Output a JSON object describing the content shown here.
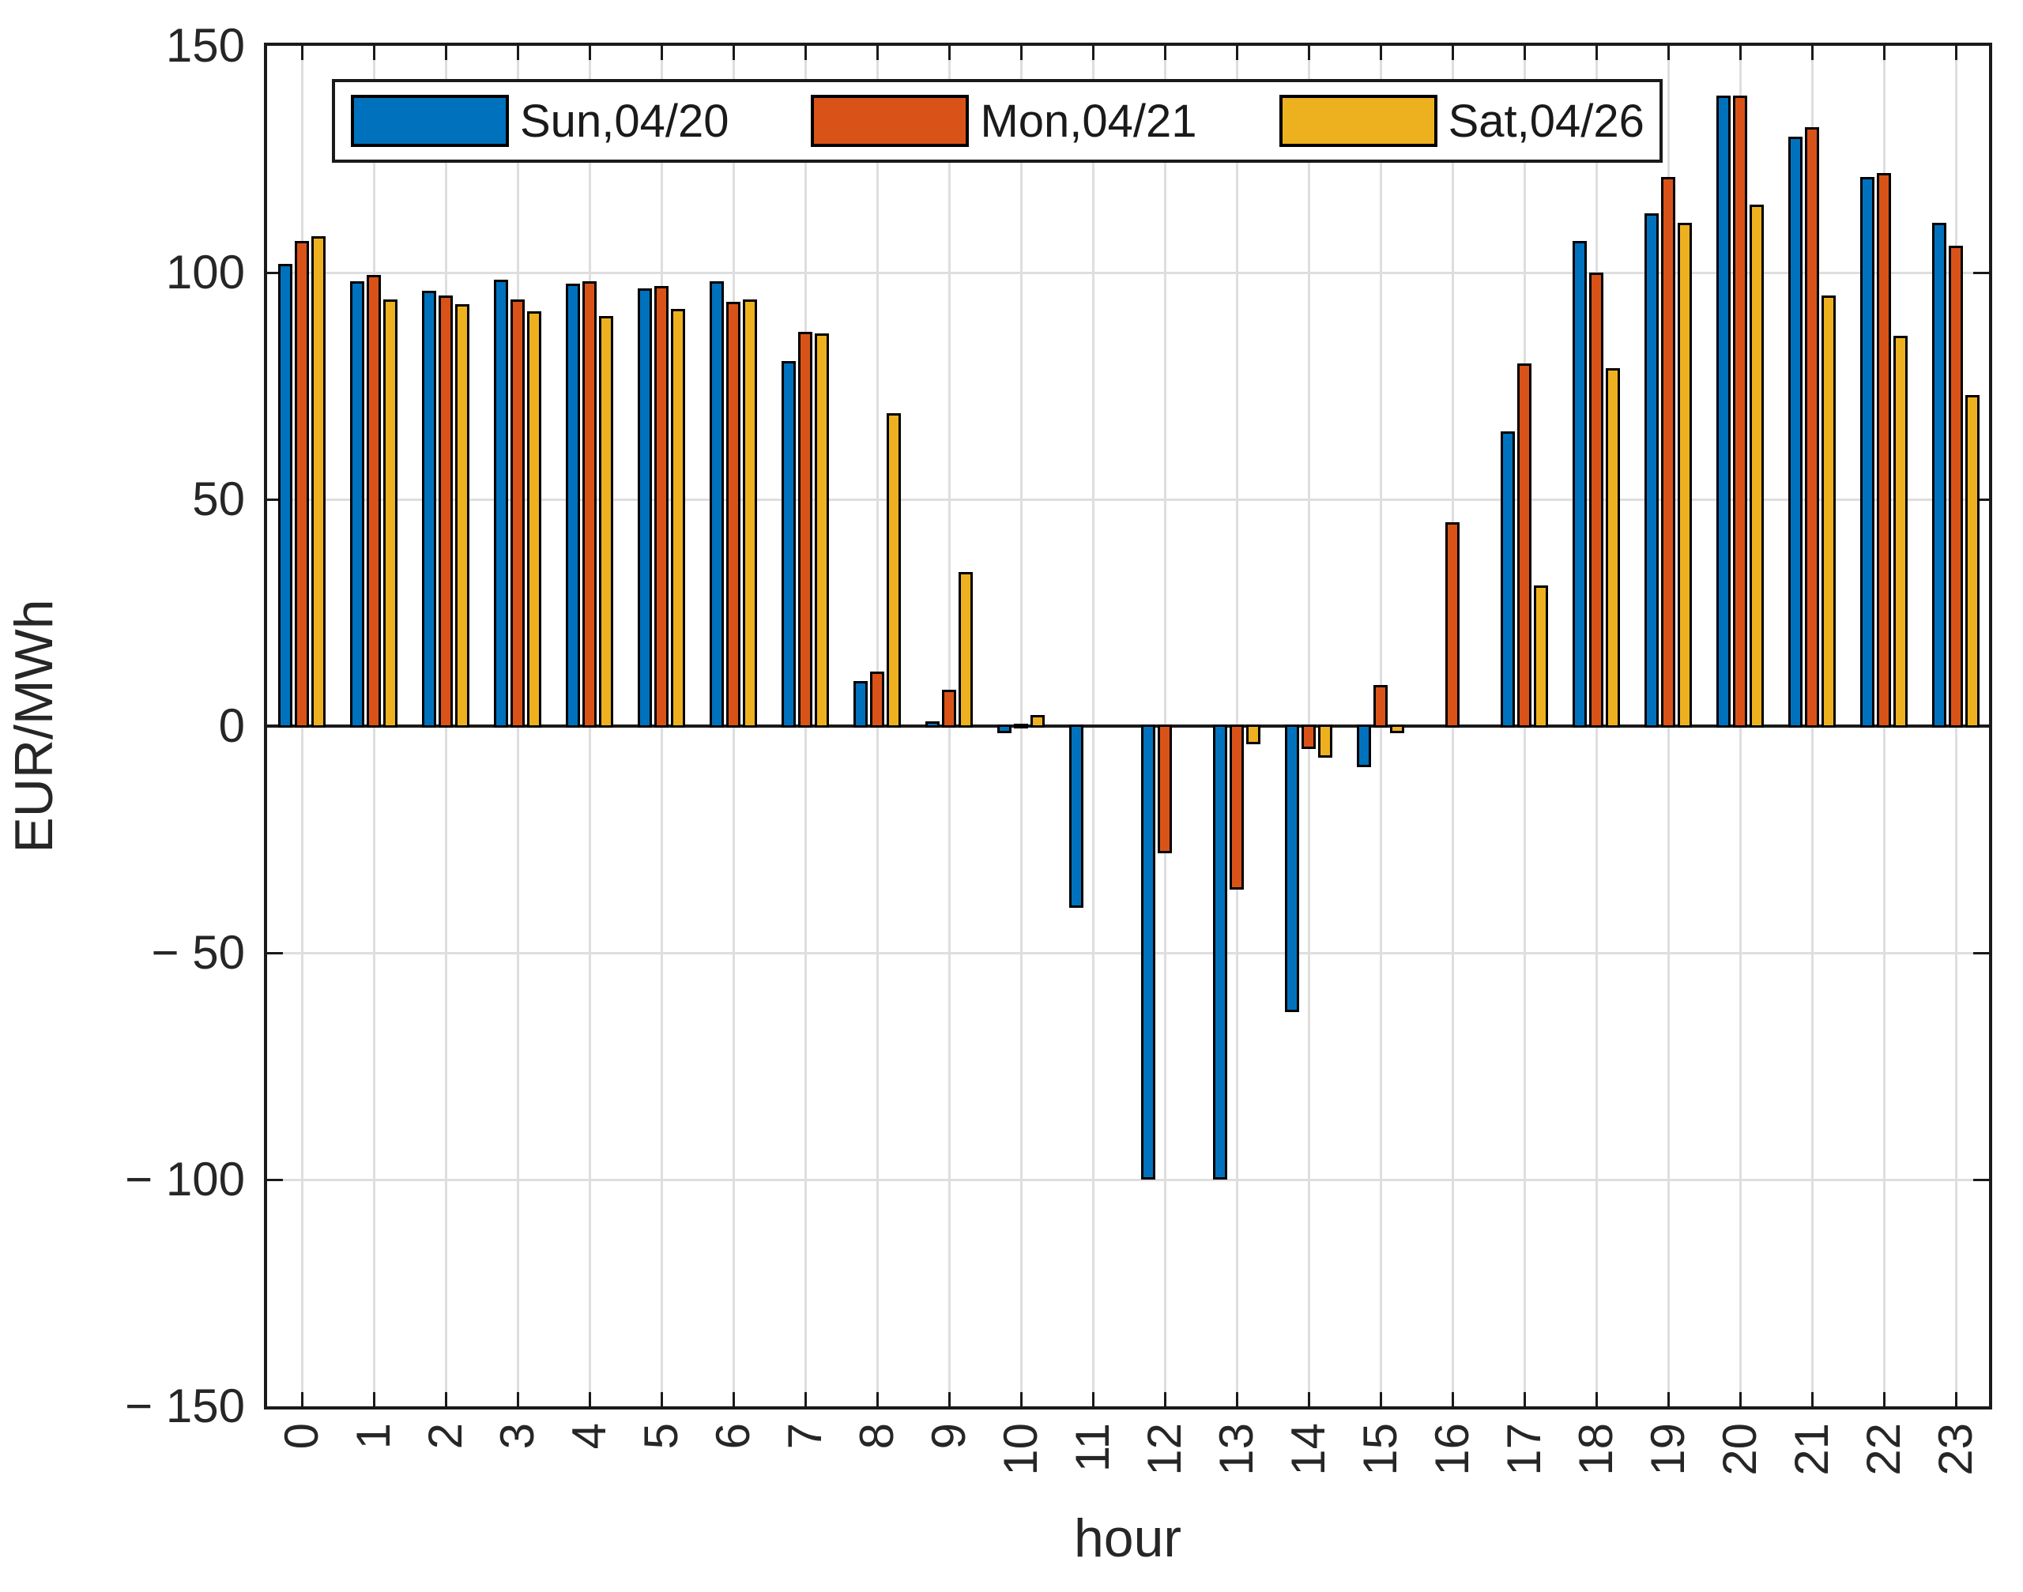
{
  "figure": {
    "background": "#ffffff",
    "axis_color": "#1a1a1a",
    "grid_color": "#dedede",
    "text_color": "#262626"
  },
  "legend": {
    "items": [
      {
        "label": "Sun,04/20",
        "color": "#0072BD"
      },
      {
        "label": "Mon,04/21",
        "color": "#D95319"
      },
      {
        "label": "Sat,04/26",
        "color": "#EDB120"
      }
    ]
  },
  "chart_data": {
    "type": "bar",
    "title": "",
    "xlabel": "hour",
    "ylabel": "EUR/MWh",
    "ylim": [
      -150,
      150
    ],
    "xtick_rotation_deg": 90,
    "grid": true,
    "legend_position": "top-left-horizontal",
    "ytick_values": [
      150,
      100,
      50,
      0,
      -50,
      -100,
      -150
    ],
    "ytick_labels": [
      "150",
      "100",
      "50",
      "0",
      "− 50",
      "− 100",
      "− 150"
    ],
    "categories": [
      "0",
      "1",
      "2",
      "3",
      "4",
      "5",
      "6",
      "7",
      "8",
      "9",
      "10",
      "11",
      "12",
      "13",
      "14",
      "15",
      "16",
      "17",
      "18",
      "19",
      "20",
      "21",
      "22",
      "23"
    ],
    "series": [
      {
        "name": "Sun,04/20",
        "color": "#0072BD",
        "values": [
          102,
          98,
          96,
          98.5,
          97.5,
          96.5,
          98,
          80.5,
          10,
          1,
          -1.5,
          -40,
          -100,
          -100,
          -63,
          -9,
          0,
          65,
          107,
          113,
          139,
          130,
          121,
          111
        ]
      },
      {
        "name": "Mon,04/21",
        "color": "#D95319",
        "values": [
          107,
          99.5,
          95,
          94,
          98,
          97,
          93.5,
          87,
          12,
          8,
          0.5,
          0,
          -28,
          -36,
          -5,
          9,
          45,
          80,
          100,
          121,
          139,
          132,
          122,
          106
        ]
      },
      {
        "name": "Sat,04/26",
        "color": "#EDB120",
        "values": [
          108,
          94,
          93,
          91.5,
          90.5,
          92,
          94,
          86.5,
          69,
          34,
          2.5,
          0,
          0,
          -4,
          -7,
          -1.5,
          0,
          31,
          79,
          111,
          115,
          95,
          86,
          73
        ]
      }
    ]
  }
}
